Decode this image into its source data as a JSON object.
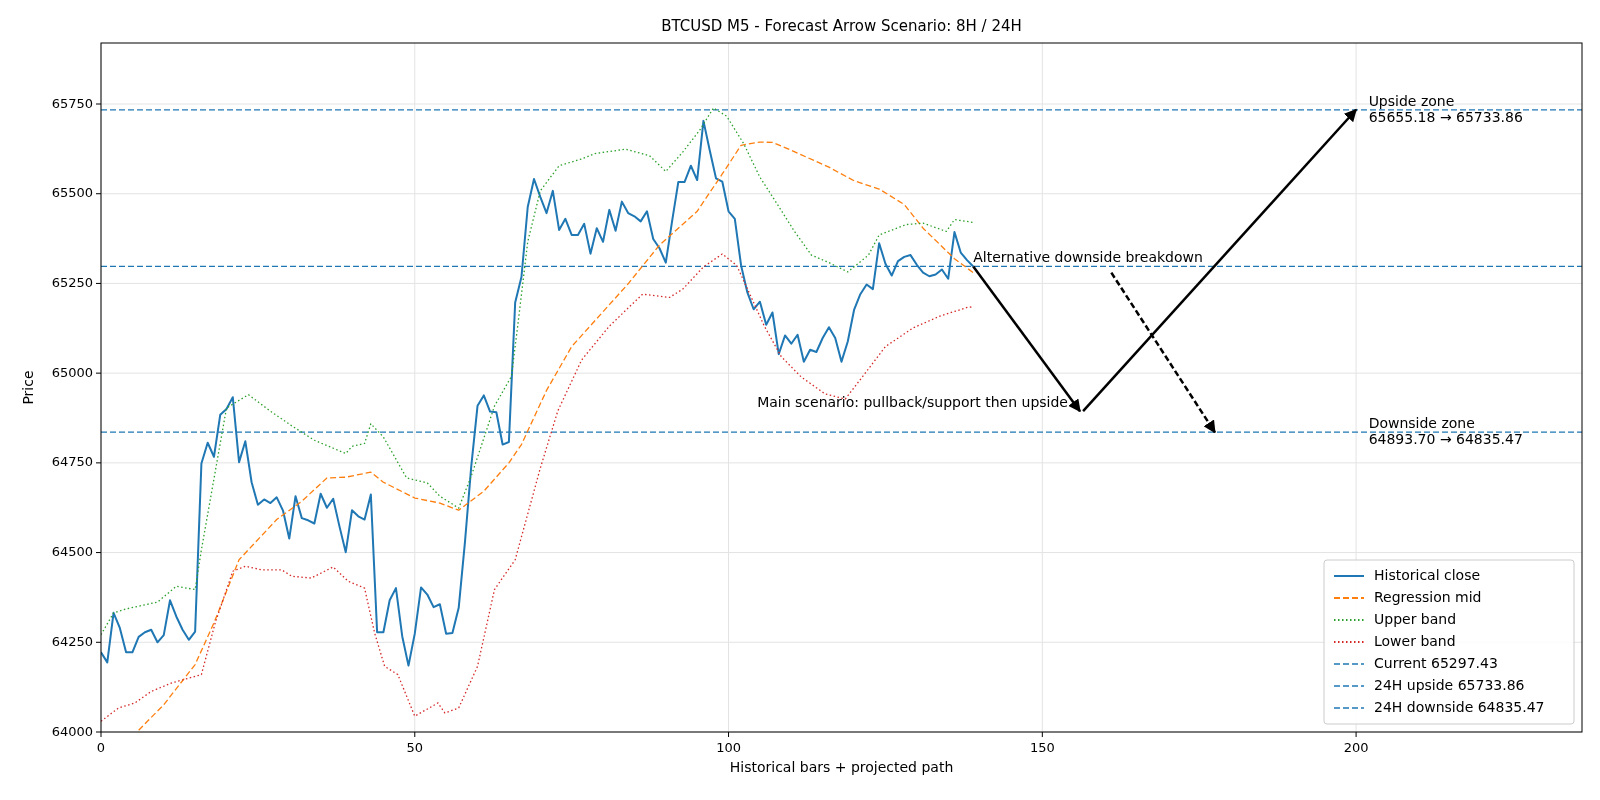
{
  "chart_data": {
    "type": "line",
    "title": "BTCUSD M5 - Forecast Arrow Scenario: 8H / 24H",
    "xlabel": "Historical bars + projected path",
    "ylabel": "Price",
    "x": [
      0,
      1,
      2,
      3,
      4,
      5,
      6,
      7,
      8,
      9,
      10,
      11,
      12,
      13,
      14,
      15,
      16,
      17,
      18,
      19,
      20,
      21,
      22,
      23,
      24,
      25,
      26,
      27,
      28,
      29,
      30,
      31,
      32,
      33,
      34,
      35,
      36,
      37,
      38,
      39,
      40,
      41,
      42,
      43,
      44,
      45,
      46,
      47,
      48,
      49,
      50,
      51,
      52,
      53,
      54,
      55,
      56,
      57,
      58,
      59,
      60,
      61,
      62,
      63,
      64,
      65,
      66,
      67,
      68,
      69,
      70,
      71,
      72,
      73,
      74,
      75,
      76,
      77,
      78,
      79,
      80,
      81,
      82,
      83,
      84,
      85,
      86,
      87,
      88,
      89,
      90,
      91,
      92,
      93,
      94,
      95,
      96,
      97,
      98,
      99,
      100,
      101,
      102,
      103,
      104,
      105,
      106,
      107,
      108,
      109,
      110,
      111,
      112,
      113,
      114,
      115,
      116,
      117,
      118,
      119,
      120,
      121,
      122,
      123,
      124,
      125,
      126,
      127,
      128,
      129,
      130,
      131,
      132,
      133,
      134,
      135,
      136,
      137,
      138,
      139
    ],
    "series": [
      {
        "name": "Historical close",
        "color": "#1f77b4",
        "line_style": "solid",
        "values": [
          64222,
          64194,
          64332,
          64290,
          64222,
          64222,
          64265,
          64278,
          64285,
          64250,
          64270,
          64367,
          64322,
          64285,
          64257,
          64280,
          64748,
          64806,
          64767,
          64884,
          64900,
          64933,
          64752,
          64810,
          64696,
          64633,
          64648,
          64638,
          64654,
          64617,
          64539,
          64657,
          64596,
          64590,
          64581,
          64664,
          64625,
          64650,
          64573,
          64501,
          64618,
          64601,
          64592,
          64662,
          64278,
          64278,
          64367,
          64401,
          64267,
          64185,
          64274,
          64403,
          64383,
          64348,
          64356,
          64274,
          64276,
          64346,
          64530,
          64740,
          64909,
          64938,
          64893,
          64891,
          64801,
          64808,
          65197,
          65268,
          65463,
          65541,
          65491,
          65446,
          65508,
          65399,
          65430,
          65385,
          65385,
          65416,
          65333,
          65404,
          65366,
          65455,
          65397,
          65478,
          65446,
          65437,
          65423,
          65451,
          65374,
          65348,
          65308,
          65423,
          65533,
          65533,
          65578,
          65538,
          65703,
          65621,
          65543,
          65534,
          65451,
          65430,
          65300,
          65225,
          65178,
          65199,
          65135,
          65169,
          65053,
          65105,
          65082,
          65107,
          65032,
          65065,
          65059,
          65098,
          65128,
          65098,
          65032,
          65088,
          65176,
          65220,
          65247,
          65234,
          65362,
          65305,
          65272,
          65312,
          65324,
          65329,
          65302,
          65280,
          65270,
          65275,
          65289,
          65263,
          65393,
          65336,
          65315,
          65297
        ]
      },
      {
        "name": "Regression mid",
        "color": "#ff7f0e",
        "line_style": "dashed",
        "x": [
          6,
          10,
          15,
          18,
          22,
          28,
          32,
          36,
          39,
          43,
          45,
          50,
          54,
          57,
          61,
          65,
          67,
          71,
          75,
          84,
          89,
          95,
          99,
          102,
          105,
          107,
          110,
          116,
          120,
          124,
          128,
          131,
          136,
          139
        ],
        "values": [
          64005,
          64076,
          64188,
          64304,
          64480,
          64592,
          64643,
          64708,
          64710,
          64724,
          64696,
          64652,
          64638,
          64618,
          64671,
          64750,
          64801,
          64952,
          65074,
          65249,
          65357,
          65451,
          65555,
          65635,
          65644,
          65643,
          65621,
          65574,
          65536,
          65513,
          65470,
          65404,
          65319,
          65280
        ]
      },
      {
        "name": "Upper band",
        "color": "#2ca02c",
        "line_style": "dotted",
        "x": [
          0,
          2,
          4,
          9,
          12,
          15,
          16,
          20,
          23.5,
          27,
          30.5,
          34,
          39,
          40,
          42,
          43,
          45,
          48.7,
          52,
          54,
          57,
          59,
          62.7,
          65.4,
          66.4,
          68,
          70,
          73,
          76.6,
          78.7,
          83.6,
          87.4,
          90,
          92.7,
          95.4,
          97.6,
          99.7,
          102.4,
          105,
          107.8,
          110.5,
          113.2,
          116,
          119,
          122.3,
          124,
          128.3,
          131,
          134.7,
          136,
          139
        ],
        "values": [
          64271,
          64332,
          64343,
          64362,
          64406,
          64397,
          64508,
          64903,
          64940,
          64894,
          64852,
          64813,
          64776,
          64796,
          64804,
          64859,
          64822,
          64708,
          64694,
          64657,
          64624,
          64713,
          64908,
          64991,
          65131,
          65366,
          65508,
          65578,
          65597,
          65612,
          65624,
          65606,
          65562,
          65616,
          65677,
          65739,
          65716,
          65640,
          65546,
          65470,
          65395,
          65329,
          65308,
          65282,
          65329,
          65385,
          65414,
          65418,
          65395,
          65428,
          65420
        ]
      },
      {
        "name": "Lower band",
        "color": "#d62728",
        "line_style": "dotted",
        "x": [
          0,
          2.8,
          5.4,
          8,
          11.3,
          15,
          16,
          18.2,
          21,
          23,
          25.6,
          28.8,
          30.4,
          33.5,
          37,
          39.4,
          42,
          43.6,
          45.2,
          47.3,
          50,
          53.7,
          54.8,
          57,
          60,
          62.7,
          66,
          70,
          72.8,
          76.6,
          81,
          86.3,
          90.6,
          92.7,
          96,
          99,
          101.3,
          103.5,
          105.7,
          108.4,
          111.6,
          115.4,
          118.6,
          121.3,
          125,
          129.4,
          133.7,
          138,
          139
        ],
        "values": [
          64030,
          64067,
          64081,
          64113,
          64137,
          64155,
          64160,
          64304,
          64448,
          64462,
          64452,
          64452,
          64434,
          64429,
          64460,
          64420,
          64401,
          64276,
          64183,
          64160,
          64044,
          64081,
          64053,
          64067,
          64183,
          64397,
          64480,
          64735,
          64895,
          65037,
          65131,
          65220,
          65211,
          65234,
          65296,
          65332,
          65300,
          65216,
          65131,
          65046,
          64989,
          64942,
          64928,
          64989,
          65074,
          65126,
          65159,
          65183,
          65185
        ]
      },
      {
        "type": "line",
        "color": "#000000",
        "line_style": "solid",
        "x": [
          139,
          156
        ],
        "values": [
          65297,
          64894
        ]
      },
      {
        "type": "line",
        "color": "#000000",
        "line_style": "solid",
        "x": [
          156.5,
          200
        ],
        "values": [
          64894,
          65734
        ]
      },
      {
        "type": "line",
        "color": "#000000",
        "line_style": "dashed",
        "x": [
          161,
          177.5
        ],
        "values": [
          65280,
          64835
        ]
      }
    ],
    "ref_lines": [
      {
        "axis": "y",
        "value": 65297.43,
        "label": "Current 65297.43",
        "color": "#1f77b4",
        "line_style": "dashed"
      },
      {
        "axis": "y",
        "value": 65733.86,
        "label": "24H upside 65733.86",
        "color": "#1f77b4",
        "line_style": "dashed"
      },
      {
        "axis": "y",
        "value": 64835.47,
        "label": "24H downside 64835.47",
        "color": "#1f77b4",
        "line_style": "dashed"
      }
    ],
    "annotations": [
      {
        "text": "Upside zone\n65655.18 → 65733.86",
        "x": 202,
        "y": 65733.86
      },
      {
        "text": "Alternative downside breakdown",
        "x": 139,
        "y": 65297.43
      },
      {
        "text": "Main scenario: pullback/support then upside",
        "x": 156,
        "y": 64894
      },
      {
        "text": "Downside zone\n64893.70 → 64835.47",
        "x": 202,
        "y": 64835.47
      }
    ],
    "xlim": [
      0,
      236
    ],
    "xticks": [
      0,
      50,
      100,
      150,
      200
    ],
    "ylim": [
      64000,
      65920
    ],
    "yticks": [
      64000,
      64250,
      64500,
      64750,
      65000,
      65250,
      65500,
      65750
    ],
    "grid": true,
    "legend": "bottom right"
  }
}
